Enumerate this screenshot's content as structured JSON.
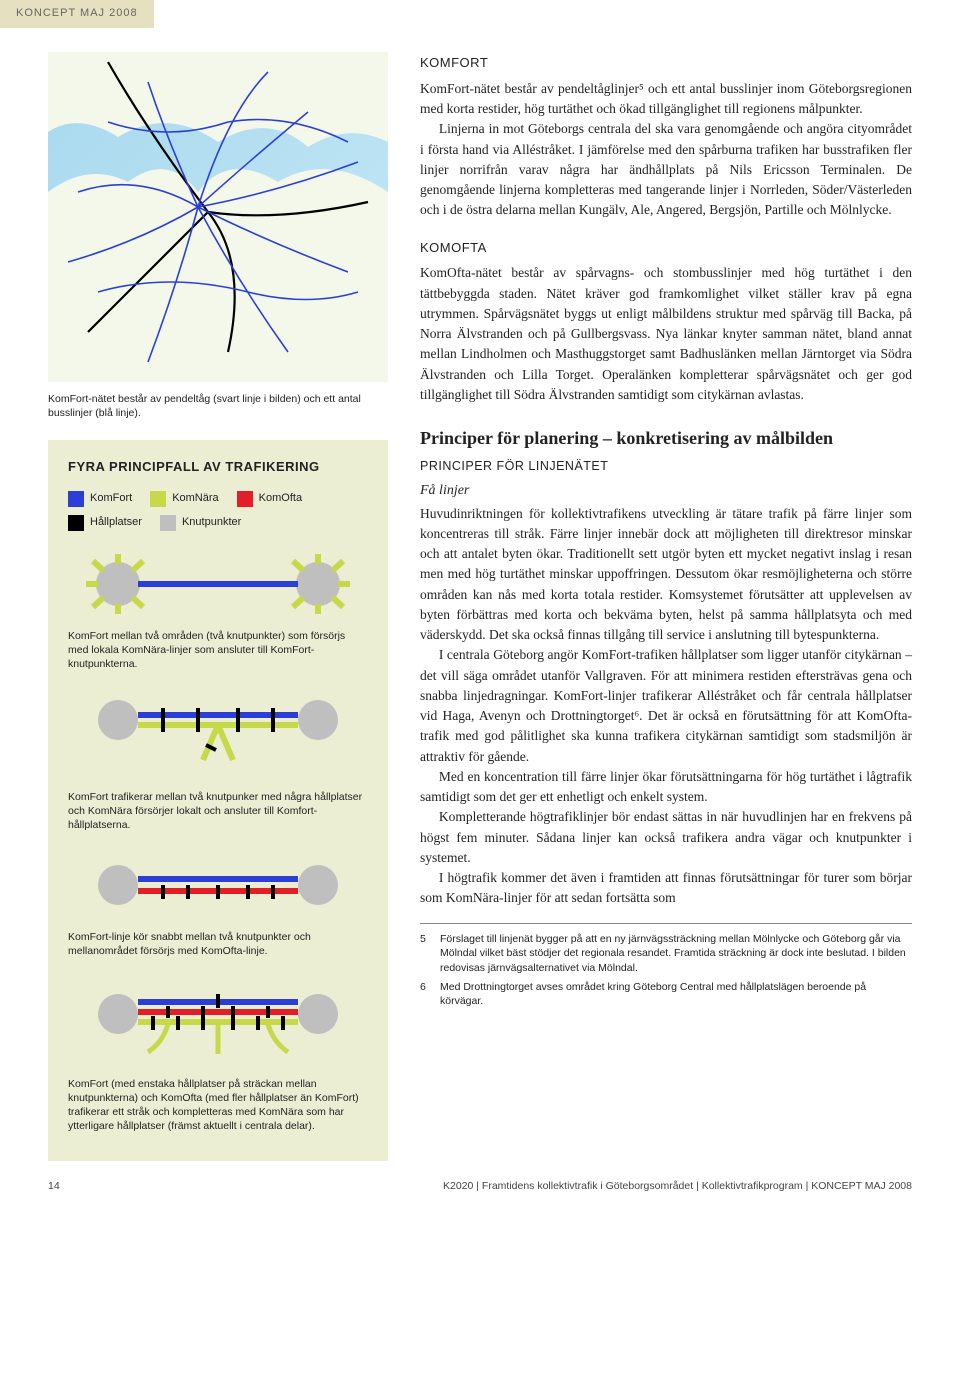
{
  "header_tab": "KONCEPT MAJ 2008",
  "map_caption": "KomFort-nätet består av pendeltåg (svart linje i bilden) och ett antal busslinjer (blå linje).",
  "colors": {
    "komfort": "#2b3fd6",
    "komnara": "#c7d84a",
    "komofta": "#e21f26",
    "hallplatser": "#000000",
    "knutpunkter": "#bfbfbf",
    "infobox_bg": "#eceed4",
    "header_bg": "#e5e0c0",
    "map_water": "#a8d8ee"
  },
  "infobox": {
    "title": "FYRA PRINCIPFALL AV TRAFIKERING",
    "legend": {
      "komfort": "KomFort",
      "komnara": "KomNära",
      "komofta": "KomOfta",
      "hallplatser": "Hållplatser",
      "knutpunkter": "Knutpunkter"
    },
    "cap1": "KomFort mellan två områden (två knutpunkter) som försörjs med lokala KomNära-linjer som ansluter till KomFort-knutpunkterna.",
    "cap2": "KomFort trafikerar mellan två knutpunker med några hållplatser och KomNära försörjer lokalt och ansluter till Komfort-hållplatserna.",
    "cap3": "KomFort-linje kör snabbt mellan två knutpunkter och mellanområdet försörjs med KomOfta-linje.",
    "cap4": "KomFort (med enstaka hållplatser på sträckan mellan knutpunkterna) och KomOfta (med fler hållplatser än KomFort) trafikerar ett stråk och kompletteras med KomNära som har ytterligare hållplatser (främst aktuellt i centrala delar)."
  },
  "right": {
    "komfort_title": "KOMFORT",
    "komfort_body": "KomFort-nätet består av pendeltåglinjer⁵ och ett antal busslinjer inom Göteborgsregionen med korta restider, hög turtäthet och ökad tillgänglighet till regionens målpunkter.\n   Linjerna in mot Göteborgs centrala del ska vara genomgående och angöra cityområdet i första hand via Alléstråket. I jämförelse med den spårburna trafiken har busstrafiken fler linjer norrifrån varav några har ändhållplats på Nils Ericsson Terminalen. De genomgående linjerna kompletteras med tangerande linjer i Norrleden, Söder/Västerleden och i de östra delarna mellan Kungälv, Ale, Angered, Bergsjön, Partille och Mölnlycke.",
    "komofta_title": "KOMOFTA",
    "komofta_body": "KomOfta-nätet består av spårvagns- och stombusslinjer med hög turtäthet i den tättbebyggda staden. Nätet kräver god framkomlighet vilket ställer krav på egna utrymmen. Spårvägsnätet byggs ut enligt målbildens struktur med spårväg till Backa, på Norra Älvstranden och på Gullbergsvass. Nya länkar knyter samman nätet, bland annat mellan Lindholmen och Masthuggstorget samt Badhuslänken mellan Järntorget via Södra Älvstranden och Lilla Torget. Operalänken kompletterar spårvägsnätet och ger god tillgänglighet till Södra Älvstranden samtidigt som citykärnan avlastas.",
    "principer_title": "Principer för planering – konkretisering av målbilden",
    "principer_sub": "PRINCIPER FÖR LINJENÄTET",
    "falinjer_title": "Få linjer",
    "falinjer_p1": "Huvudinriktningen för kollektivtrafikens utveckling är tätare trafik på färre linjer som koncentreras till stråk. Färre linjer innebär dock att möjligheten till direktresor minskar och att antalet byten ökar. Traditionellt sett utgör byten ett mycket negativt inslag i resan men med hög turtäthet minskar uppoffringen. Dessutom ökar resmöjligheterna och större områden kan nås med korta totala restider. Komsystemet förutsätter att upplevelsen av byten förbättras med korta och bekväma byten, helst på samma hållplatsyta och med väderskydd. Det ska också finnas tillgång till service i anslutning till bytespunkterna.",
    "falinjer_p2": "I centrala Göteborg angör KomFort-trafiken hållplatser som ligger utanför citykärnan – det vill säga området utanför Vallgraven. För att minimera restiden eftersträvas gena och snabba linjedragningar. KomFort-linjer trafikerar Alléstråket och får centrala hållplatser vid Haga, Avenyn och Drottningtorget⁶. Det är också en förutsättning för att KomOfta-trafik med god pålitlighet ska kunna trafikera citykärnan samtidigt som stadsmiljön är attraktiv för gående.",
    "falinjer_p3": "Med en koncentration till färre linjer ökar förutsättningarna för hög turtäthet i lågtrafik samtidigt som det ger ett enhetligt och enkelt system.",
    "falinjer_p4": "Kompletterande högtrafiklinjer bör endast sättas in när huvudlinjen har en frekvens på högst fem minuter. Sådana linjer kan också trafikera andra vägar och knutpunkter i systemet.",
    "falinjer_p5": "I högtrafik kommer det även i framtiden att finnas förutsättningar för turer som börjar som KomNära-linjer för att sedan fortsätta som"
  },
  "footnotes": {
    "5": "Förslaget till linjenät bygger på att en ny järnvägssträckning mellan Mölnlycke och Göteborg går via Mölndal vilket bäst stödjer det regionala resandet. Framtida sträckning är dock inte beslutad. I bilden redovisas järnvägsalternativet via Mölndal.",
    "6": "Med Drottningtorget avses området kring Göteborg Central med hållplatslägen beroende på körvägar."
  },
  "footer": {
    "pagenum": "14",
    "right": "K2020 | Framtidens kollektivtrafik i Göteborgsområdet | Kollektivtrafikprogram | KONCEPT MAJ 2008"
  }
}
